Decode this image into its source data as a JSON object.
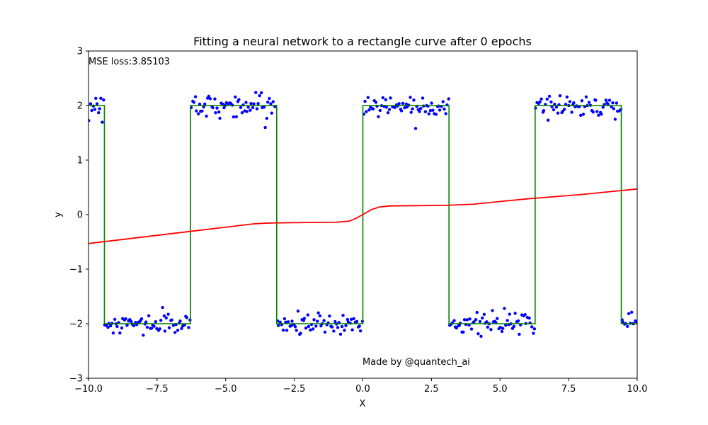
{
  "chart_data": {
    "type": "line",
    "title": "Fitting a neural network to a rectangle curve after 0 epochs",
    "xlabel": "X",
    "ylabel": "y",
    "xlim": [
      -10,
      10
    ],
    "ylim": [
      -3,
      3
    ],
    "x_ticks": [
      -10,
      -7.5,
      -5,
      -2.5,
      0,
      2.5,
      5,
      7.5,
      10
    ],
    "x_tick_labels": [
      "−10.0",
      "−7.5",
      "−5.0",
      "−2.5",
      "0.0",
      "2.5",
      "5.0",
      "7.5",
      "10.0"
    ],
    "y_ticks": [
      -3,
      -2,
      -1,
      0,
      1,
      2,
      3
    ],
    "y_tick_labels": [
      "−3",
      "−2",
      "−1",
      "0",
      "1",
      "2",
      "3"
    ],
    "grid": false,
    "annotations": {
      "loss": "MSE loss:3.85103",
      "credit": "Made by @quantech_ai"
    },
    "series": [
      {
        "role": "noisy samples",
        "style": "scatter",
        "color": "#0000ff",
        "segments": [
          {
            "x0": -10.0,
            "x1": -9.42,
            "level": 2
          },
          {
            "x0": -9.42,
            "x1": -6.28,
            "level": -2
          },
          {
            "x0": -6.28,
            "x1": -3.14,
            "level": 2
          },
          {
            "x0": -3.14,
            "x1": 0.0,
            "level": -2
          },
          {
            "x0": 0.0,
            "x1": 3.14,
            "level": 2
          },
          {
            "x0": 3.14,
            "x1": 6.28,
            "level": -2
          },
          {
            "x0": 6.28,
            "x1": 9.42,
            "level": 2
          },
          {
            "x0": 9.42,
            "x1": 10.0,
            "level": -2
          }
        ],
        "noise_sd": 0.1,
        "count": 400
      },
      {
        "role": "target square wave",
        "style": "step",
        "color": "#008000",
        "x": [
          -10.0,
          -9.42,
          -9.42,
          -6.28,
          -6.28,
          -3.14,
          -3.14,
          0.0,
          0.0,
          3.14,
          3.14,
          6.28,
          6.28,
          9.42,
          9.42,
          10.0
        ],
        "y": [
          2,
          2,
          -2,
          -2,
          2,
          2,
          -2,
          -2,
          2,
          2,
          -2,
          -2,
          2,
          2,
          -2,
          -2
        ]
      },
      {
        "role": "network prediction",
        "style": "line",
        "color": "#ff0000",
        "x": [
          -10.0,
          -9.0,
          -8.0,
          -7.0,
          -6.0,
          -5.0,
          -4.5,
          -4.0,
          -3.5,
          -3.0,
          -2.0,
          -1.0,
          -0.5,
          -0.3,
          0.0,
          0.3,
          0.6,
          1.0,
          2.0,
          3.0,
          4.0,
          5.0,
          6.0,
          7.0,
          8.0,
          9.0,
          10.0
        ],
        "y": [
          -0.53,
          -0.47,
          -0.41,
          -0.35,
          -0.29,
          -0.23,
          -0.2,
          -0.17,
          -0.155,
          -0.15,
          -0.145,
          -0.14,
          -0.12,
          -0.08,
          0.0,
          0.09,
          0.14,
          0.16,
          0.165,
          0.17,
          0.19,
          0.24,
          0.29,
          0.33,
          0.37,
          0.42,
          0.47
        ]
      }
    ]
  }
}
